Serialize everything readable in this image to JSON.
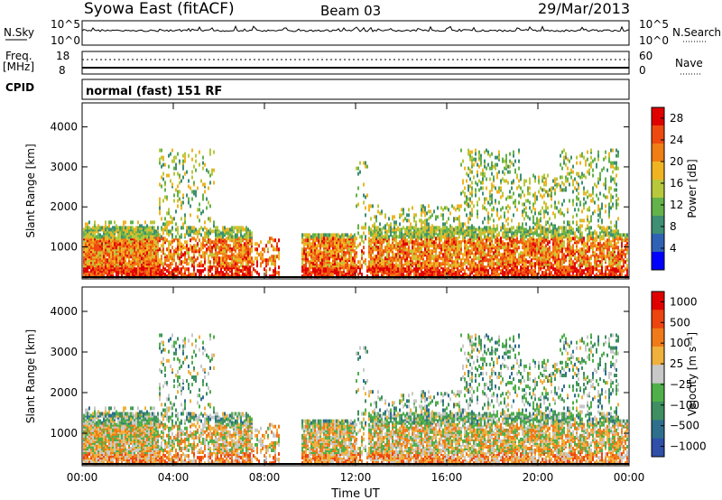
{
  "header": {
    "title": "Syowa East (fitACF)",
    "beam": "Beam 03",
    "date": "29/Mar/2013"
  },
  "summary_panels": {
    "nsky_label": "N.Sky",
    "nsky_scale": [
      "10^5",
      "10^0"
    ],
    "nsearch_label": "N.Search",
    "freq_label": "Freq.",
    "freq_unit": "[MHz]",
    "freq_scale": [
      "18",
      "8"
    ],
    "nave_label": "Nave",
    "nave_scale": [
      "60",
      "0"
    ],
    "cpid_label": "CPID",
    "cpid_value": "normal (fast) 151 RF"
  },
  "colors": {
    "power_scale": [
      "#0000ff",
      "#2f62b4",
      "#3e8f73",
      "#63b24a",
      "#b8c83c",
      "#f0b422",
      "#f07e14",
      "#ee4a10",
      "#e00000"
    ],
    "velocity_scale": [
      "#2f4fa8",
      "#2f6f8e",
      "#3f8f62",
      "#4fb04a",
      "#c8c8c8",
      "#f0b03c",
      "#f07a18",
      "#ee4410",
      "#e00000"
    ]
  },
  "chart_data": [
    {
      "type": "heatmap",
      "title": "",
      "xlabel": "Time UT",
      "ylabel": "Slant Range [km]",
      "x_ticks": [
        "00:00",
        "04:00",
        "08:00",
        "12:00",
        "16:00",
        "20:00",
        "00:00"
      ],
      "y_ticks": [
        "1000",
        "2000",
        "3000",
        "4000"
      ],
      "ylim": [
        200,
        4600
      ],
      "colorbar_label": "Power [dB]",
      "colorbar_ticks": [
        "4",
        "8",
        "12",
        "16",
        "20",
        "24",
        "28"
      ],
      "colorbar_range": [
        0,
        30
      ]
    },
    {
      "type": "heatmap",
      "title": "",
      "xlabel": "Time UT",
      "ylabel": "Slant Range [km]",
      "x_ticks": [
        "00:00",
        "04:00",
        "08:00",
        "12:00",
        "16:00",
        "20:00",
        "00:00"
      ],
      "y_ticks": [
        "1000",
        "2000",
        "3000",
        "4000"
      ],
      "ylim": [
        200,
        4600
      ],
      "colorbar_label": "Velocity [m s⁻¹]",
      "colorbar_ticks": [
        "1000",
        "500",
        "100",
        "25",
        "−25",
        "−100",
        "−500",
        "−1000"
      ],
      "colorbar_range": [
        -1000,
        1000
      ]
    }
  ]
}
